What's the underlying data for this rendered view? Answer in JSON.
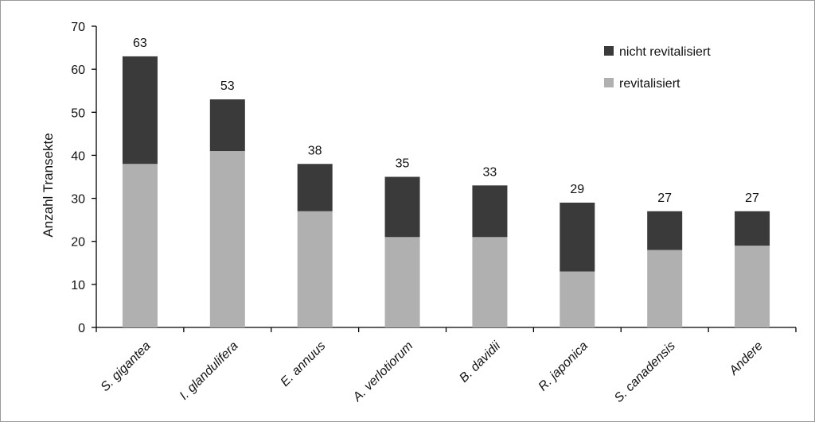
{
  "chart_data": {
    "type": "bar",
    "stacked": true,
    "ylabel": "Anzahl Transekte",
    "ylim": [
      0,
      70
    ],
    "yticks": [
      0,
      10,
      20,
      30,
      40,
      50,
      60,
      70
    ],
    "grid": false,
    "legend_position": "top-right",
    "categories": [
      "S. gigantea",
      "I. glandulifera",
      "E. annuus",
      "A. verlotiorum",
      "B. davidii",
      "R. japonica",
      "S. canadensis",
      "Andere"
    ],
    "series": [
      {
        "name": "revitalisiert",
        "values": [
          38,
          41,
          27,
          21,
          21,
          13,
          18,
          19
        ],
        "color": "#b0b0b0"
      },
      {
        "name": "nicht revitalisiert",
        "values": [
          25,
          12,
          11,
          14,
          12,
          16,
          9,
          8
        ],
        "color": "#3a3a3a"
      }
    ],
    "totals": [
      63,
      53,
      38,
      35,
      33,
      29,
      27,
      27
    ]
  }
}
